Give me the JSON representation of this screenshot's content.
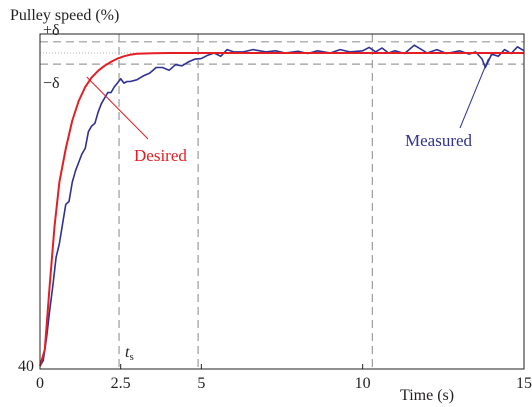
{
  "chart_data": {
    "type": "line",
    "ylabel": "Pulley speed (%)",
    "xlabel": "Time (s)",
    "x_ticks": [
      0,
      2.5,
      5,
      10,
      15
    ],
    "x_tick_labels": [
      "0",
      "2.5",
      "5",
      "10",
      "15"
    ],
    "y_tick_labels": [
      "40"
    ],
    "xlim": [
      0,
      15
    ],
    "ylim": [
      40,
      100
    ],
    "setpoint": 96.6,
    "band_upper": 98.6,
    "band_lower": 94.6,
    "settling_time": 2.45,
    "band_labels": {
      "upper": "+δ",
      "lower": "−δ"
    },
    "ts_label": {
      "main": "t",
      "sub": "s"
    },
    "vertical_gridlines": [
      2.45,
      4.9,
      10.3
    ],
    "series": [
      {
        "name": "Desired",
        "color": "#e31e24",
        "x": [
          0,
          0.15,
          0.3,
          0.45,
          0.6,
          0.8,
          1.0,
          1.2,
          1.4,
          1.6,
          1.8,
          2.0,
          2.2,
          2.4,
          2.6,
          2.8,
          3.0,
          3.5,
          4.0,
          5.0,
          7.0,
          10.0,
          12.0,
          15.0
        ],
        "values": [
          40.5,
          43.5,
          55.0,
          65.5,
          73.5,
          79.5,
          84.5,
          88.0,
          90.5,
          92.2,
          93.4,
          94.3,
          95.0,
          95.6,
          96.0,
          96.3,
          96.45,
          96.55,
          96.6,
          96.6,
          96.6,
          96.6,
          96.6,
          96.6
        ]
      },
      {
        "name": "Measured",
        "color": "#2e3192",
        "x": [
          0,
          0.1,
          0.2,
          0.3,
          0.4,
          0.5,
          0.6,
          0.7,
          0.8,
          0.9,
          1.0,
          1.1,
          1.2,
          1.3,
          1.4,
          1.5,
          1.6,
          1.7,
          1.8,
          1.9,
          2.0,
          2.1,
          2.2,
          2.3,
          2.4,
          2.5,
          2.6,
          2.7,
          2.8,
          3.0,
          3.2,
          3.4,
          3.6,
          3.8,
          4.0,
          4.2,
          4.4,
          4.6,
          4.8,
          5.0,
          5.2,
          5.4,
          5.6,
          5.8,
          6.0,
          6.3,
          6.6,
          7.0,
          7.3,
          7.6,
          8.0,
          8.3,
          8.6,
          9.0,
          9.3,
          9.6,
          10.0,
          10.2,
          10.4,
          10.6,
          10.8,
          11.0,
          11.3,
          11.6,
          12.0,
          12.3,
          12.6,
          13.0,
          13.3,
          13.5,
          13.7,
          13.8,
          14.0,
          14.2,
          14.4,
          14.6,
          14.8,
          15.0
        ],
        "values": [
          40.5,
          41.5,
          45.5,
          50.5,
          55.0,
          60.0,
          62.5,
          66.0,
          69.5,
          70.0,
          73.5,
          75.5,
          77.0,
          78.5,
          79.5,
          82.5,
          83.5,
          84.0,
          86.0,
          87.5,
          88.5,
          89.5,
          89.5,
          90.5,
          91.2,
          92.0,
          91.2,
          91.5,
          91.5,
          91.8,
          92.5,
          93.0,
          94.0,
          94.0,
          93.5,
          94.5,
          94.3,
          95.0,
          95.5,
          95.6,
          96.2,
          96.6,
          96.0,
          97.2,
          96.8,
          96.8,
          97.2,
          96.8,
          97.0,
          96.6,
          96.9,
          96.5,
          97.0,
          96.6,
          97.2,
          96.8,
          97.0,
          97.6,
          96.8,
          97.5,
          96.6,
          97.0,
          96.5,
          98.0,
          96.6,
          97.2,
          96.5,
          97.0,
          96.4,
          96.8,
          95.5,
          94.0,
          96.4,
          96.0,
          97.2,
          96.5,
          97.7,
          97.0
        ]
      }
    ],
    "annotations": [
      {
        "text": "Desired",
        "color": "#e31e24",
        "series": "Desired",
        "x": 1.45,
        "y": 92.3
      },
      {
        "text": "Measured",
        "color": "#2e3192",
        "series": "Measured",
        "x": 13.9,
        "y": 95.6
      }
    ]
  }
}
